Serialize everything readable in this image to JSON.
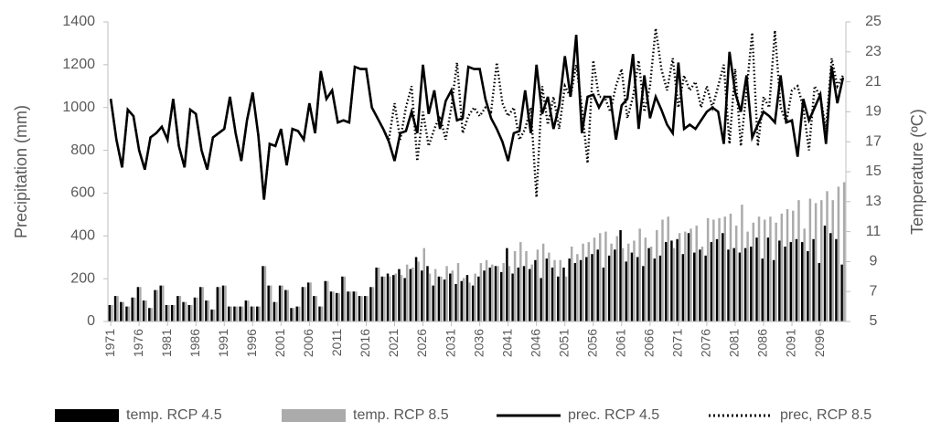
{
  "chart_data": {
    "type": "bar_line",
    "y_label": "Precipitation (mm)",
    "y2_label": "Temperature (ºC)",
    "x": [
      1971,
      1972,
      1973,
      1974,
      1975,
      1976,
      1977,
      1978,
      1979,
      1980,
      1981,
      1982,
      1983,
      1984,
      1985,
      1986,
      1987,
      1988,
      1989,
      1990,
      1991,
      1992,
      1993,
      1994,
      1995,
      1996,
      1997,
      1998,
      1999,
      2000,
      2001,
      2002,
      2003,
      2004,
      2005,
      2006,
      2007,
      2008,
      2009,
      2010,
      2011,
      2012,
      2013,
      2014,
      2015,
      2016,
      2017,
      2018,
      2019,
      2020,
      2021,
      2022,
      2023,
      2024,
      2025,
      2026,
      2027,
      2028,
      2029,
      2030,
      2031,
      2032,
      2033,
      2034,
      2035,
      2036,
      2037,
      2038,
      2039,
      2040,
      2041,
      2042,
      2043,
      2044,
      2045,
      2046,
      2047,
      2048,
      2049,
      2050,
      2051,
      2052,
      2053,
      2054,
      2055,
      2056,
      2057,
      2058,
      2059,
      2060,
      2061,
      2062,
      2063,
      2064,
      2065,
      2066,
      2067,
      2068,
      2069,
      2070,
      2071,
      2072,
      2073,
      2074,
      2075,
      2076,
      2077,
      2078,
      2079,
      2080,
      2081,
      2082,
      2083,
      2084,
      2085,
      2086,
      2087,
      2088,
      2089,
      2090,
      2091,
      2092,
      2093,
      2094,
      2095,
      2096,
      2097,
      2098,
      2099,
      2100
    ],
    "xticks": [
      1971,
      1976,
      1981,
      1986,
      1991,
      1996,
      2001,
      2006,
      2011,
      2016,
      2021,
      2026,
      2031,
      2036,
      2041,
      2046,
      2051,
      2056,
      2061,
      2066,
      2071,
      2076,
      2081,
      2086,
      2091,
      2096
    ],
    "xlim": [
      1970.5,
      2100.5
    ],
    "ylim": [
      0,
      1400
    ],
    "yticks": [
      0,
      200,
      400,
      600,
      800,
      1000,
      1200,
      1400
    ],
    "y2lim": [
      5,
      25
    ],
    "y2ticks": [
      5,
      7,
      9,
      11,
      13,
      15,
      17,
      19,
      21,
      23,
      25
    ],
    "legend": "bottom",
    "series": [
      {
        "name": "temp. RCP 4.5",
        "kind": "bar",
        "axis": "y2",
        "color": "#000000",
        "values": [
          6.1,
          6.7,
          6.3,
          6.0,
          6.6,
          7.3,
          6.4,
          5.9,
          7.1,
          7.4,
          6.1,
          6.1,
          6.7,
          6.3,
          6.1,
          6.6,
          7.3,
          6.4,
          5.8,
          7.3,
          7.4,
          6.0,
          6.0,
          6.0,
          6.4,
          6.0,
          6.0,
          8.7,
          7.4,
          6.3,
          7.4,
          7.1,
          5.9,
          6.0,
          7.3,
          7.6,
          6.7,
          6.0,
          7.7,
          7.0,
          6.9,
          8.0,
          7.0,
          7.0,
          6.7,
          6.7,
          7.3,
          8.6,
          8.0,
          8.2,
          8.1,
          8.5,
          7.9,
          8.5,
          9.3,
          8.4,
          8.7,
          7.4,
          8.0,
          7.8,
          8.2,
          7.5,
          7.7,
          8.1,
          7.4,
          8.0,
          8.4,
          8.6,
          8.7,
          8.3,
          9.9,
          8.2,
          8.6,
          8.7,
          8.5,
          9.1,
          7.9,
          9.2,
          8.6,
          8.0,
          8.6,
          9.2,
          8.9,
          9.1,
          9.3,
          9.5,
          9.8,
          8.6,
          9.4,
          9.8,
          11.1,
          9.0,
          9.6,
          9.3,
          8.7,
          9.9,
          9.2,
          9.4,
          10.3,
          10.4,
          10.5,
          9.5,
          10.9,
          9.6,
          9.8,
          9.4,
          10.3,
          10.5,
          10.9,
          9.8,
          9.9,
          9.6,
          9.9,
          10.0,
          10.6,
          9.2,
          10.6,
          9.1,
          10.4,
          10.0,
          10.3,
          10.5,
          10.3,
          9.7,
          10.5,
          8.9,
          11.4,
          10.9,
          10.5,
          8.8
        ]
      },
      {
        "name": "temp. RCP 8.5",
        "kind": "bar",
        "axis": "y2",
        "color": "#ababab",
        "values": [
          6.1,
          6.7,
          6.3,
          6.0,
          6.6,
          7.3,
          6.4,
          5.9,
          7.1,
          7.4,
          6.1,
          6.1,
          6.7,
          6.3,
          6.1,
          6.6,
          7.3,
          6.4,
          5.8,
          7.3,
          7.4,
          6.0,
          6.0,
          6.0,
          6.4,
          6.0,
          6.0,
          8.7,
          7.4,
          6.3,
          7.4,
          7.1,
          5.9,
          6.0,
          7.3,
          7.6,
          6.7,
          6.0,
          7.7,
          7.0,
          6.9,
          8.0,
          7.0,
          7.0,
          6.7,
          6.7,
          7.3,
          8.6,
          8.0,
          8.0,
          8.2,
          8.1,
          8.8,
          8.6,
          9.0,
          9.9,
          8.2,
          8.5,
          8.0,
          8.7,
          8.4,
          8.9,
          7.9,
          7.6,
          8.2,
          8.9,
          9.1,
          8.8,
          8.7,
          8.9,
          8.7,
          9.7,
          10.3,
          9.7,
          8.8,
          9.8,
          10.2,
          9.6,
          9.1,
          9.1,
          8.0,
          10.0,
          9.5,
          10.2,
          10.3,
          10.6,
          10.9,
          11.0,
          10.2,
          10.7,
          9.9,
          10.2,
          10.4,
          11.2,
          10.6,
          10.0,
          11.1,
          11.8,
          12.0,
          9.9,
          10.9,
          11.0,
          11.2,
          11.4,
          10.0,
          11.9,
          11.8,
          11.9,
          12.0,
          12.2,
          11.4,
          12.8,
          11.0,
          11.6,
          12.0,
          11.8,
          12.0,
          11.6,
          12.2,
          12.5,
          12.4,
          13.1,
          11.2,
          13.2,
          12.9,
          13.1,
          13.7,
          13.1,
          14.0,
          14.3
        ]
      },
      {
        "name": "prec. RCP 4.5",
        "kind": "line",
        "style": "solid",
        "color": "#000000",
        "values": [
          1040,
          850,
          720,
          990,
          960,
          800,
          710,
          860,
          880,
          910,
          850,
          1040,
          820,
          720,
          990,
          970,
          800,
          710,
          860,
          880,
          900,
          1050,
          880,
          750,
          940,
          1070,
          870,
          570,
          830,
          820,
          900,
          730,
          900,
          890,
          850,
          1020,
          880,
          1170,
          1040,
          1080,
          930,
          940,
          930,
          1190,
          1180,
          1180,
          1000,
          950,
          900,
          840,
          750,
          880,
          890,
          980,
          880,
          1200,
          970,
          1080,
          900,
          1030,
          1080,
          940,
          950,
          1190,
          1180,
          1180,
          1040,
          950,
          900,
          840,
          750,
          880,
          890,
          1080,
          880,
          1200,
          970,
          1050,
          900,
          1010,
          1240,
          1050,
          1340,
          880,
          1050,
          1060,
          1000,
          1050,
          1050,
          850,
          1010,
          1040,
          1250,
          900,
          1150,
          950,
          1050,
          990,
          920,
          880,
          1210,
          900,
          920,
          900,
          940,
          980,
          1000,
          980,
          830,
          1260,
          1070,
          980,
          1150,
          860,
          920,
          980,
          960,
          930,
          1150,
          930,
          940,
          770,
          1040,
          940,
          1000,
          1060,
          830,
          1190,
          1020,
          1140
        ]
      },
      {
        "name": "prec, RCP 8.5",
        "kind": "line",
        "style": "dotted",
        "color": "#000000",
        "values": [
          1040,
          850,
          720,
          990,
          960,
          800,
          710,
          860,
          880,
          910,
          850,
          1040,
          820,
          720,
          990,
          970,
          800,
          710,
          860,
          880,
          900,
          1050,
          880,
          750,
          940,
          1070,
          870,
          570,
          830,
          820,
          900,
          730,
          900,
          890,
          850,
          1020,
          880,
          1170,
          1040,
          1080,
          930,
          940,
          930,
          1190,
          1180,
          1180,
          1000,
          950,
          900,
          850,
          1020,
          850,
          1000,
          1100,
          750,
          980,
          820,
          900,
          960,
          850,
          1000,
          1210,
          880,
          960,
          1000,
          960,
          1000,
          980,
          1210,
          1020,
          960,
          1000,
          850,
          900,
          1000,
          580,
          1100,
          920,
          1050,
          900,
          1100,
          1050,
          1200,
          1000,
          740,
          1220,
          1050,
          1050,
          980,
          1100,
          1180,
          950,
          1050,
          1220,
          980,
          1100,
          1370,
          1180,
          1080,
          1230,
          1000,
          1150,
          1080,
          1120,
          1000,
          1100,
          1000,
          1100,
          1200,
          830,
          1180,
          820,
          1080,
          1350,
          820,
          1050,
          1000,
          1360,
          1000,
          930,
          1080,
          1100,
          1000,
          800,
          1100,
          1050,
          900,
          1230,
          1100,
          1150
        ]
      }
    ]
  }
}
